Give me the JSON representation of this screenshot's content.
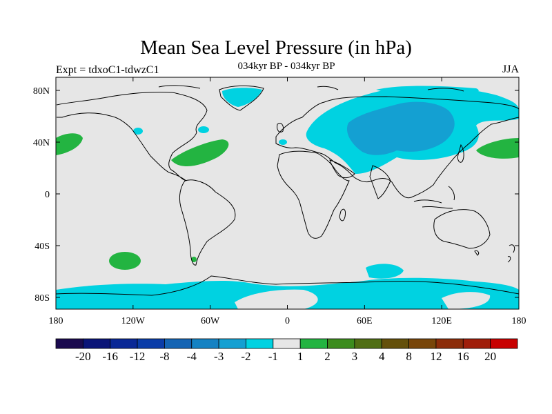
{
  "title": "Mean Sea Level Pressure (in hPa)",
  "subtitle": "034kyr BP - 034kyr BP",
  "expt": "Expt = tdxoC1-tdwzC1",
  "season": "JJA",
  "axes": {
    "lat_ticks": [
      "80N",
      "40N",
      "0",
      "40S",
      "80S"
    ],
    "lon_ticks": [
      "180",
      "120W",
      "60W",
      "0",
      "60E",
      "120E",
      "180"
    ]
  },
  "colorbar": {
    "colors": [
      "#1a0a4f",
      "#0a1478",
      "#0a2896",
      "#0a3ca8",
      "#1464b4",
      "#1482c3",
      "#14a0d2",
      "#00d2e1",
      "#e6e6e6",
      "#23b441",
      "#3c8c1e",
      "#506e14",
      "#64500a",
      "#78460a",
      "#8c2d0a",
      "#a01e0a",
      "#c80000"
    ],
    "labels": [
      "-20",
      "-16",
      "-12",
      "-8",
      "-4",
      "-3",
      "-2",
      "-1",
      "1",
      "2",
      "3",
      "4",
      "8",
      "12",
      "16",
      "20"
    ]
  },
  "colors": {
    "ocean_land_neutral": "#e6e6e6",
    "negative_1_2": "#00d2e1",
    "negative_2_3": "#14a0d2",
    "positive_1_2": "#23b441",
    "coast": "#000000"
  }
}
